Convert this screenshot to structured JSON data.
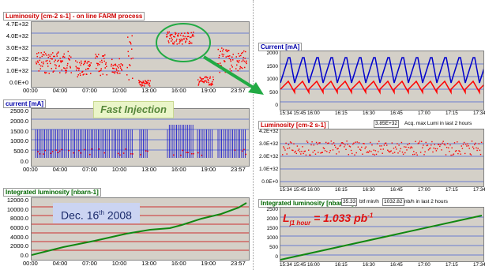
{
  "left": {
    "luminosity": {
      "title": "Luminosity [cm-2 s-1] - on line FARM process",
      "y_ticks": [
        "4.7E+32",
        "4.0E+32",
        "3.0E+32",
        "2.0E+32",
        "1.0E+32",
        "0.0E+0"
      ],
      "x_ticks": [
        "00:00",
        "04:00",
        "07:00",
        "10:00",
        "13:00",
        "16:00",
        "19:00",
        "23:57"
      ]
    },
    "current": {
      "title": "current [mA]",
      "y_ticks": [
        "2500.0",
        "2000.0",
        "1500.0",
        "1000.0",
        "500.0",
        "0.0"
      ],
      "x_ticks": [
        "00:00",
        "04:00",
        "07:00",
        "10:00",
        "13:00",
        "16:00",
        "19:00",
        "23:57"
      ],
      "annotation": "Fast Injection"
    },
    "integrated": {
      "title": "Integrated luminosity  [nbarn-1]",
      "y_ticks": [
        "12000.0",
        "10000.0",
        "8000.0",
        "6000.0",
        "4000.0",
        "2000.0",
        "0.0"
      ],
      "x_ticks": [
        "00:00",
        "04:00",
        "07:00",
        "10:00",
        "13:00",
        "16:00",
        "19:00",
        "23:57"
      ],
      "date_main": "Dec. 16",
      "date_sup": "th",
      "date_year": "2008"
    }
  },
  "right": {
    "current": {
      "title": "Current [mA]",
      "y_ticks": [
        "2000",
        "1500",
        "1000",
        "500",
        "0"
      ],
      "x_ticks": [
        "15:34 15:45",
        "16:00",
        "16:15",
        "16:30",
        "16:45",
        "17:00",
        "17:15",
        "17:34"
      ]
    },
    "luminosity": {
      "title": "Luminosity [cm-2 s-1]",
      "max_value": "3.85E+32",
      "max_caption": "Acq. max Lumi in last 2 hours",
      "y_ticks": [
        "4.2E+32",
        "3.0E+32",
        "2.0E+32",
        "1.0E+32",
        "0.0E+0"
      ],
      "x_ticks": [
        "15:34 15:45",
        "16:00",
        "16:15",
        "16:30",
        "16:45",
        "17:00",
        "17:15",
        "17:34"
      ]
    },
    "integrated": {
      "title": "Integrated luminosity  [nbarn-1]",
      "value1": "35.33",
      "caption1": "btf min/h",
      "value2": "1032.82",
      "caption2": "nb/h in last 2 hours",
      "y_ticks": [
        "2500",
        "2000",
        "1500",
        "1000",
        "500",
        "0"
      ],
      "x_ticks": [
        "15:34 15:45",
        "16:00",
        "16:15",
        "16:30",
        "16:45",
        "17:00",
        "17:15",
        "17:34"
      ],
      "formula_l": "L",
      "formula_sub": "∫1 hour",
      "formula_eq": " = 1.033 pb",
      "formula_sup": "-1"
    }
  },
  "colors": {
    "lumi": "#ff0000",
    "current_blue": "#0000cc",
    "integrated": "#118811",
    "arrow": "#22aa44",
    "plot_bg": "#d4d0c8"
  }
}
